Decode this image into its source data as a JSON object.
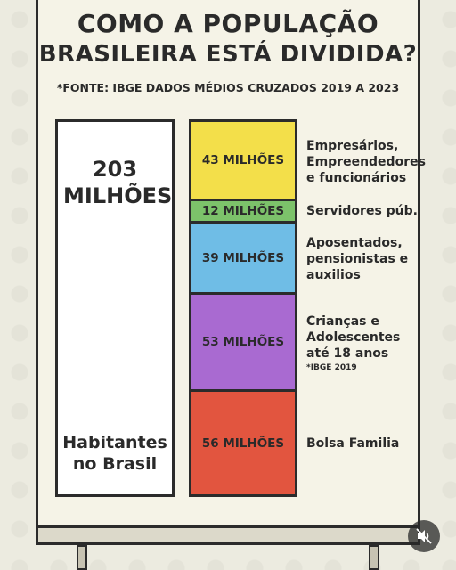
{
  "title": {
    "line1": "COMO A POPULAÇÃO",
    "line2": "BRASILEIRA ESTÁ DIVIDIDA?"
  },
  "source": "*FONTE: IBGE DADOS MÉDIOS CRUZADOS 2019 A 2023",
  "total": {
    "value": "203 MILHÕES",
    "caption": "Habitantes no Brasil"
  },
  "segments": [
    {
      "value": "43 MILHÕES",
      "millions": 43,
      "label": "Empresários, Empreendedores e funcionários",
      "note": "",
      "color": "#f3df4a"
    },
    {
      "value": "12 MILHÕES",
      "millions": 12,
      "label": "Servidores púb.",
      "note": "",
      "color": "#7cc26a"
    },
    {
      "value": "39 MILHÕES",
      "millions": 39,
      "label": "Aposentados, pensionistas e auxilios",
      "note": "",
      "color": "#6fbde6"
    },
    {
      "value": "53 MILHÕES",
      "millions": 53,
      "label": "Crianças e Adolescentes até 18 anos",
      "note": "*IBGE 2019",
      "color": "#a96ad1"
    },
    {
      "value": "56 MILHÕES",
      "millions": 56,
      "label": "Bolsa Familia",
      "note": "",
      "color": "#e2553f"
    }
  ],
  "colors": {
    "background": "#ecebe0",
    "board": "#f5f3e7",
    "outline": "#2b2b2b"
  },
  "controls": {
    "mute_icon": "speaker-muted-icon"
  }
}
